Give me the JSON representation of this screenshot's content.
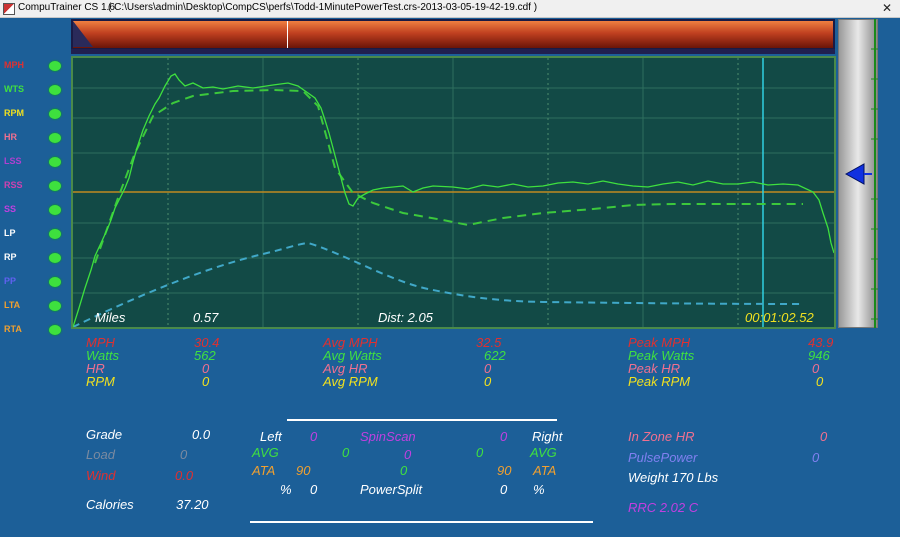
{
  "window": {
    "app_name": "CompuTrainer CS 1.6",
    "file_path": "( C:\\Users\\admin\\Desktop\\CompCS\\perfs\\Todd-1MinutePowerTest.crs-2013-03-05-19-42-19.cdf )",
    "close_glyph": "✕"
  },
  "legend": [
    {
      "label": "MPH",
      "color": "#e03030"
    },
    {
      "label": "WTS",
      "color": "#40e040"
    },
    {
      "label": "RPM",
      "color": "#f0e020"
    },
    {
      "label": "HR",
      "color": "#f07090"
    },
    {
      "label": "LSS",
      "color": "#b040d0"
    },
    {
      "label": "RSS",
      "color": "#d040b0"
    },
    {
      "label": "SS",
      "color": "#c040e0"
    },
    {
      "label": "LP",
      "color": "#ffffff"
    },
    {
      "label": "RP",
      "color": "#ffffff"
    },
    {
      "label": "PP",
      "color": "#6060f0"
    },
    {
      "label": "LTA",
      "color": "#f0a030"
    },
    {
      "label": "RTA",
      "color": "#f0a030"
    }
  ],
  "chart": {
    "miles_label": "Miles",
    "miles_value": "0.57",
    "dist_label": "Dist: 2.05",
    "timer": "00:01:02.52"
  },
  "stats": {
    "col1": [
      {
        "label": "MPH",
        "value": "30.4",
        "color": "#e03030"
      },
      {
        "label": "Watts",
        "value": "562",
        "color": "#40e040"
      },
      {
        "label": "HR",
        "value": "0",
        "color": "#f07090"
      },
      {
        "label": "RPM",
        "value": "0",
        "color": "#f0e020"
      }
    ],
    "col2": [
      {
        "label": "Avg MPH",
        "value": "32.5",
        "color": "#e03030"
      },
      {
        "label": "Avg Watts",
        "value": "622",
        "color": "#40e040"
      },
      {
        "label": "Avg HR",
        "value": "0",
        "color": "#f07090"
      },
      {
        "label": "Avg RPM",
        "value": "0",
        "color": "#f0e020"
      }
    ],
    "col3": [
      {
        "label": "Peak MPH",
        "value": "43.9",
        "color": "#e03030"
      },
      {
        "label": "Peak Watts",
        "value": "946",
        "color": "#40e040"
      },
      {
        "label": "Peak HR",
        "value": "0",
        "color": "#f07090"
      },
      {
        "label": "Peak RPM",
        "value": "0",
        "color": "#f0e020"
      }
    ]
  },
  "lower_left": {
    "grade_label": "Grade",
    "grade_value": "0.0",
    "load_label": "Load",
    "load_value": "0",
    "wind_label": "Wind",
    "wind_value": "0.0",
    "calories_label": "Calories",
    "calories_value": "37.20"
  },
  "spinscan": {
    "left_label": "Left",
    "left_value": "0",
    "title": "SpinScan",
    "center_value": "0",
    "right_label": "Right",
    "avg_left_label": "AVG",
    "avg_left_value": "0",
    "avg_mid": "0",
    "avg_right_value": "0",
    "avg_right_label": "AVG",
    "ata_left_label": "ATA",
    "ata_left_value": "90",
    "ata_mid": "0",
    "ata_right_value": "90",
    "ata_right_label": "ATA",
    "pct_left_label": "%",
    "pct_left_value": "0",
    "powersplit_label": "PowerSplit",
    "pct_right_value": "0",
    "pct_right_label": "%"
  },
  "lower_right": {
    "inzone_label": "In Zone HR",
    "inzone_value": "0",
    "pulsepower_label": "PulsePower",
    "pulsepower_value": "0",
    "weight": "Weight 170 Lbs",
    "rrc": "RRC 2.02 C"
  }
}
